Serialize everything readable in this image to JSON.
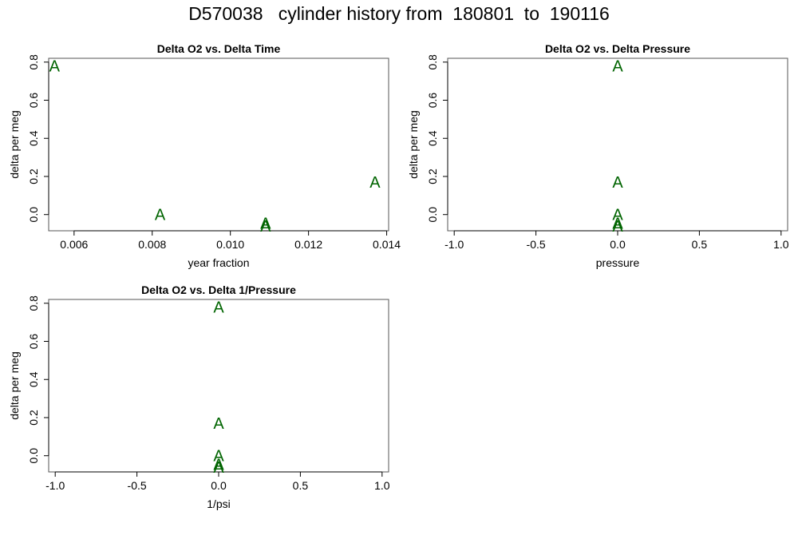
{
  "title": "D570038   cylinder history from  180801  to  190116",
  "colors": {
    "point": "#006400",
    "axis": "#000000",
    "frame": "#555555"
  },
  "chart_data": [
    {
      "type": "scatter",
      "title": "Delta O2 vs. Delta Time",
      "xlabel": "year fraction",
      "ylabel": "delta per meg",
      "marker": "A",
      "xlim": [
        0.00535,
        0.01405
      ],
      "ylim": [
        -0.085,
        0.82
      ],
      "xticks": [
        0.006,
        0.008,
        0.01,
        0.012,
        0.014
      ],
      "xtick_labels": [
        "0.006",
        "0.008",
        "0.010",
        "0.012",
        "0.014"
      ],
      "yticks": [
        0.0,
        0.2,
        0.4,
        0.6,
        0.8
      ],
      "ytick_labels": [
        "0.0",
        "0.2",
        "0.4",
        "0.6",
        "0.8"
      ],
      "points": [
        {
          "x": 0.0055,
          "y": 0.78
        },
        {
          "x": 0.0082,
          "y": 0.0
        },
        {
          "x": 0.0109,
          "y": -0.045
        },
        {
          "x": 0.0109,
          "y": -0.06
        },
        {
          "x": 0.0137,
          "y": 0.17
        }
      ]
    },
    {
      "type": "scatter",
      "title": "Delta O2 vs. Delta Pressure",
      "xlabel": "pressure",
      "ylabel": "delta per meg",
      "marker": "A",
      "xlim": [
        -1.04,
        1.04
      ],
      "ylim": [
        -0.085,
        0.82
      ],
      "xticks": [
        -1.0,
        -0.5,
        0.0,
        0.5,
        1.0
      ],
      "xtick_labels": [
        "-1.0",
        "-0.5",
        "0.0",
        "0.5",
        "1.0"
      ],
      "yticks": [
        0.0,
        0.2,
        0.4,
        0.6,
        0.8
      ],
      "ytick_labels": [
        "0.0",
        "0.2",
        "0.4",
        "0.6",
        "0.8"
      ],
      "points": [
        {
          "x": 0.0,
          "y": 0.78
        },
        {
          "x": 0.0,
          "y": 0.17
        },
        {
          "x": 0.0,
          "y": 0.0
        },
        {
          "x": 0.0,
          "y": -0.045
        },
        {
          "x": 0.0,
          "y": -0.06
        }
      ]
    },
    {
      "type": "scatter",
      "title": "Delta O2 vs. Delta 1/Pressure",
      "xlabel": "1/psi",
      "ylabel": "delta per meg",
      "marker": "A",
      "xlim": [
        -1.04,
        1.04
      ],
      "ylim": [
        -0.085,
        0.82
      ],
      "xticks": [
        -1.0,
        -0.5,
        0.0,
        0.5,
        1.0
      ],
      "xtick_labels": [
        "-1.0",
        "-0.5",
        "0.0",
        "0.5",
        "1.0"
      ],
      "yticks": [
        0.0,
        0.2,
        0.4,
        0.6,
        0.8
      ],
      "ytick_labels": [
        "0.0",
        "0.2",
        "0.4",
        "0.6",
        "0.8"
      ],
      "points": [
        {
          "x": 0.0,
          "y": 0.78
        },
        {
          "x": 0.0,
          "y": 0.17
        },
        {
          "x": 0.0,
          "y": 0.0
        },
        {
          "x": 0.0,
          "y": -0.045
        },
        {
          "x": 0.0,
          "y": -0.06
        }
      ]
    }
  ]
}
